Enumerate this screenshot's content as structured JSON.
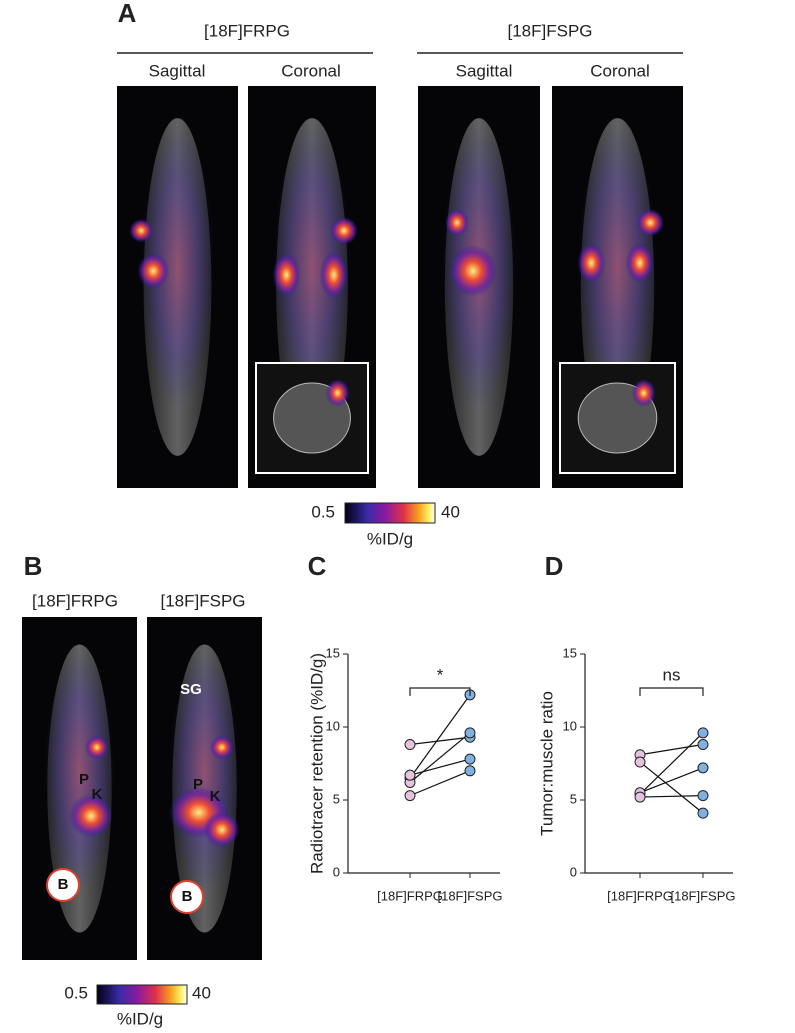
{
  "figure": {
    "panel_a": {
      "label": "A",
      "tracers": [
        "[18F]FRPG",
        "[18F]FSPG"
      ],
      "views": [
        "Sagittal",
        "Coronal"
      ],
      "colorbar": {
        "min": 0.5,
        "max": 40,
        "unit": "%ID/g"
      }
    },
    "panel_b": {
      "label": "B",
      "tracers": [
        "[18F]FRPG",
        "[18F]FSPG"
      ],
      "annotations": [
        "P",
        "K",
        "B",
        "SG"
      ],
      "colorbar": {
        "min": 0.5,
        "max": 40,
        "unit": "%ID/g"
      }
    }
  },
  "chart_data": [
    {
      "type": "paired",
      "label": "C",
      "ylabel": "Radiotracer retention (%ID/g)",
      "categories": [
        "[18F]FRPG",
        "[18F]FSPG"
      ],
      "colors": [
        "#e6c3dd",
        "#7fb2e0"
      ],
      "values": [
        [
          6.5,
          12.2
        ],
        [
          8.8,
          9.3
        ],
        [
          6.2,
          9.6
        ],
        [
          6.7,
          7.8
        ],
        [
          5.3,
          7.0
        ]
      ],
      "ylim": [
        0,
        15
      ],
      "yticks": [
        0,
        5,
        10,
        15
      ],
      "annotation": "*"
    },
    {
      "type": "paired",
      "label": "D",
      "ylabel": "Tumor:muscle ratio",
      "categories": [
        "[18F]FRPG",
        "[18F]FSPG"
      ],
      "colors": [
        "#e6c3dd",
        "#7fb2e0"
      ],
      "values": [
        [
          5.4,
          9.6
        ],
        [
          8.1,
          8.8
        ],
        [
          5.5,
          7.2
        ],
        [
          5.2,
          5.3
        ],
        [
          7.6,
          4.1
        ]
      ],
      "ylim": [
        0,
        15
      ],
      "yticks": [
        0,
        5,
        10,
        15
      ],
      "annotation": "ns"
    }
  ]
}
